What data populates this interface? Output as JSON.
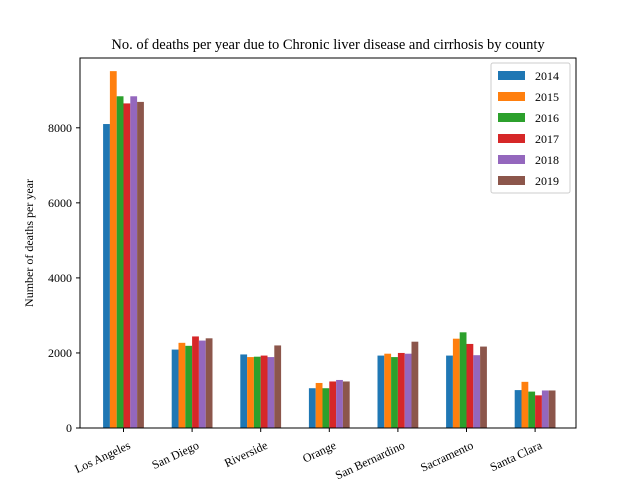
{
  "chart_data": {
    "type": "bar",
    "title": "No. of deaths per year due to Chronic liver disease and cirrhosis by county",
    "xlabel": "",
    "ylabel": "Number of deaths per year",
    "categories": [
      "Los Angeles",
      "San Diego",
      "Riverside",
      "Orange",
      "San Bernardino",
      "Sacramento",
      "Santa Clara"
    ],
    "ylim": [
      0,
      9860
    ],
    "yticks": [
      0,
      2000,
      4000,
      6000,
      8000
    ],
    "ytick_labels": [
      "0",
      "2000",
      "4000",
      "6000",
      "8000"
    ],
    "legend_position": "top-right",
    "grid": false,
    "series": [
      {
        "name": "2014",
        "color": "#1f77b4",
        "values": [
          8100,
          2090,
          1960,
          1060,
          1930,
          1930,
          1010
        ]
      },
      {
        "name": "2015",
        "color": "#ff7f0e",
        "values": [
          9510,
          2270,
          1890,
          1200,
          1980,
          2380,
          1230
        ]
      },
      {
        "name": "2016",
        "color": "#2ca02c",
        "values": [
          8840,
          2190,
          1900,
          1060,
          1890,
          2550,
          970
        ]
      },
      {
        "name": "2017",
        "color": "#d62728",
        "values": [
          8650,
          2440,
          1930,
          1240,
          2000,
          2240,
          870
        ]
      },
      {
        "name": "2018",
        "color": "#9467bd",
        "values": [
          8840,
          2330,
          1890,
          1280,
          1980,
          1940,
          1000
        ]
      },
      {
        "name": "2019",
        "color": "#8c564b",
        "values": [
          8690,
          2390,
          2200,
          1240,
          2300,
          2170,
          1000
        ]
      }
    ]
  }
}
